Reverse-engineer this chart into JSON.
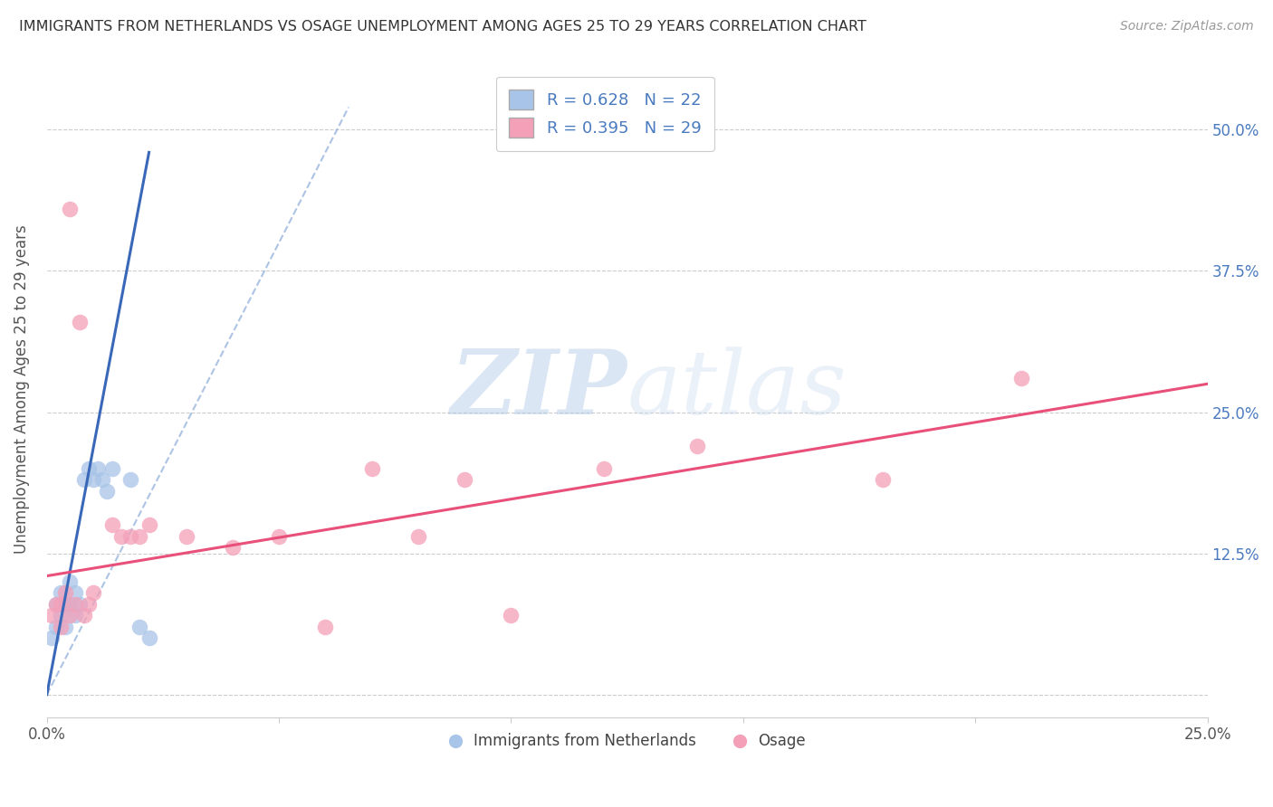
{
  "title": "IMMIGRANTS FROM NETHERLANDS VS OSAGE UNEMPLOYMENT AMONG AGES 25 TO 29 YEARS CORRELATION CHART",
  "source": "Source: ZipAtlas.com",
  "ylabel": "Unemployment Among Ages 25 to 29 years",
  "xlim": [
    0.0,
    0.25
  ],
  "ylim": [
    -0.02,
    0.56
  ],
  "xtick_positions": [
    0.0,
    0.05,
    0.1,
    0.15,
    0.2,
    0.25
  ],
  "xticklabels": [
    "0.0%",
    "",
    "",
    "",
    "",
    "25.0%"
  ],
  "ytick_positions": [
    0.0,
    0.125,
    0.25,
    0.375,
    0.5
  ],
  "ytick_labels": [
    "",
    "12.5%",
    "25.0%",
    "37.5%",
    "50.0%"
  ],
  "blue_scatter_x": [
    0.001,
    0.002,
    0.002,
    0.003,
    0.003,
    0.004,
    0.004,
    0.005,
    0.005,
    0.006,
    0.006,
    0.007,
    0.008,
    0.009,
    0.01,
    0.011,
    0.012,
    0.013,
    0.014,
    0.018,
    0.02,
    0.022
  ],
  "blue_scatter_y": [
    0.05,
    0.06,
    0.08,
    0.07,
    0.09,
    0.06,
    0.08,
    0.1,
    0.08,
    0.09,
    0.07,
    0.08,
    0.19,
    0.2,
    0.19,
    0.2,
    0.19,
    0.18,
    0.2,
    0.19,
    0.06,
    0.05
  ],
  "pink_scatter_x": [
    0.001,
    0.002,
    0.003,
    0.003,
    0.004,
    0.005,
    0.005,
    0.006,
    0.007,
    0.008,
    0.009,
    0.01,
    0.014,
    0.016,
    0.018,
    0.02,
    0.022,
    0.03,
    0.04,
    0.05,
    0.06,
    0.07,
    0.08,
    0.09,
    0.1,
    0.12,
    0.14,
    0.18,
    0.21
  ],
  "pink_scatter_y": [
    0.07,
    0.08,
    0.06,
    0.08,
    0.09,
    0.07,
    0.43,
    0.08,
    0.33,
    0.07,
    0.08,
    0.09,
    0.15,
    0.14,
    0.14,
    0.14,
    0.15,
    0.14,
    0.13,
    0.14,
    0.06,
    0.2,
    0.14,
    0.19,
    0.07,
    0.2,
    0.22,
    0.19,
    0.28
  ],
  "blue_line_x": [
    0.0,
    0.022
  ],
  "blue_line_y": [
    0.0,
    0.48
  ],
  "dashed_line_x": [
    0.0,
    0.065
  ],
  "dashed_line_y": [
    0.0,
    0.52
  ],
  "pink_line_x": [
    0.0,
    0.25
  ],
  "pink_line_y": [
    0.105,
    0.275
  ],
  "blue_color": "#a8c4e8",
  "pink_color": "#f4a0b8",
  "blue_line_color": "#3a68b8",
  "dashed_line_color": "#8aaad8",
  "pink_line_color": "#e8507a",
  "R_blue": 0.628,
  "N_blue": 22,
  "R_pink": 0.395,
  "N_pink": 29,
  "legend_blue_label": "Immigrants from Netherlands",
  "legend_pink_label": "Osage",
  "watermark_zip": "ZIP",
  "watermark_atlas": "atlas",
  "background_color": "#ffffff",
  "grid_color": "#cccccc",
  "title_color": "#333333",
  "source_color": "#999999",
  "tick_label_color": "#4a7abf",
  "axis_label_color": "#555555"
}
